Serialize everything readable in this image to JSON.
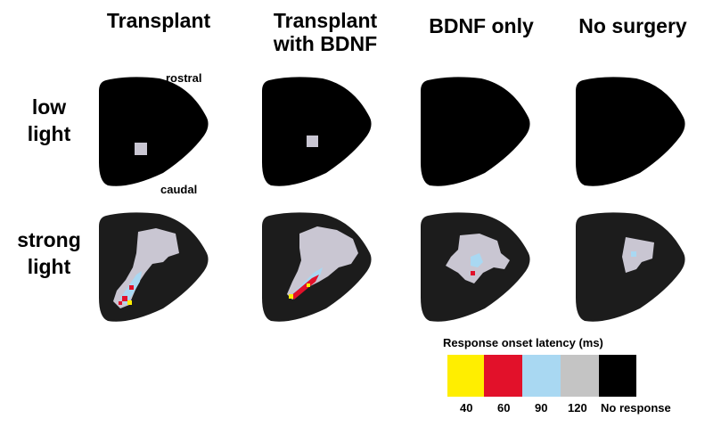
{
  "columns": [
    {
      "title": "Transplant"
    },
    {
      "title": "Transplant\nwith BDNF"
    },
    {
      "title": "BDNF only"
    },
    {
      "title": "No surgery"
    }
  ],
  "rows": [
    {
      "label": "low\nlight"
    },
    {
      "label": "strong\nlight"
    }
  ],
  "orientation": {
    "rostral": "rostral",
    "caudal": "caudal"
  },
  "legend": {
    "title": "Response onset latency (ms)",
    "items": [
      {
        "label": "40",
        "color": "#ffee00"
      },
      {
        "label": "60",
        "color": "#e2112a"
      },
      {
        "label": "90",
        "color": "#a9d8f2"
      },
      {
        "label": "120",
        "color": "#c4c4c4"
      },
      {
        "label": "No response",
        "color": "#000000"
      }
    ]
  },
  "colors": {
    "map_background": "#000000",
    "map_background_strong": "#1c1c1c",
    "response_120": "#c9c6d2",
    "response_90": "#a9d8f2",
    "response_60": "#e2112a",
    "response_40": "#ffee00"
  }
}
